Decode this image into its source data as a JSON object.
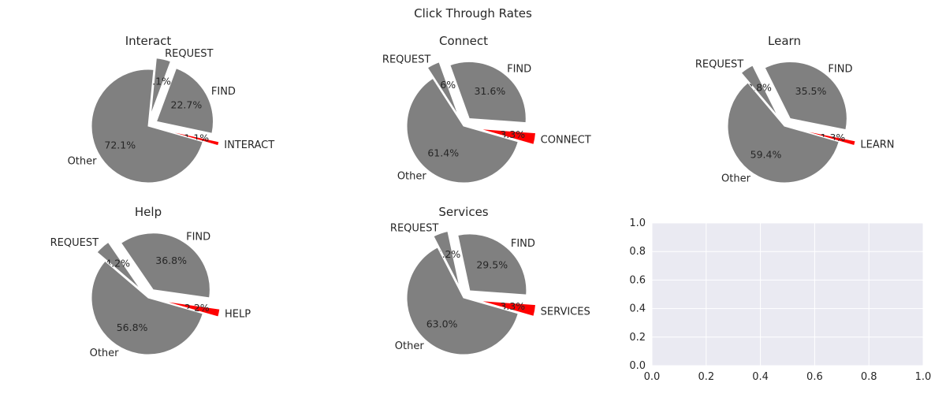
{
  "title": "Click Through Rates",
  "colors": {
    "highlight": "#ff0000",
    "base": "#808080",
    "axes_bg": "#eaeaf2",
    "grid": "#ffffff"
  },
  "chart_data": [
    {
      "type": "pie",
      "title": "Interact",
      "slices": [
        {
          "label": "INTERACT",
          "value": 1.1,
          "pct_label": "1.1%",
          "highlight": true
        },
        {
          "label": "FIND",
          "value": 22.7,
          "pct_label": "22.7%",
          "highlight": false
        },
        {
          "label": "REQUEST",
          "value": 4.1,
          "pct_label": "4.1%",
          "highlight": false
        },
        {
          "label": "Other",
          "value": 72.1,
          "pct_label": "72.1%",
          "highlight": false
        }
      ]
    },
    {
      "type": "pie",
      "title": "Connect",
      "slices": [
        {
          "label": "CONNECT",
          "value": 3.3,
          "pct_label": "3.3%",
          "highlight": true
        },
        {
          "label": "FIND",
          "value": 31.6,
          "pct_label": "31.6%",
          "highlight": false
        },
        {
          "label": "REQUEST",
          "value": 3.6,
          "pct_label": "3.6%",
          "highlight": false
        },
        {
          "label": "Other",
          "value": 61.4,
          "pct_label": "61.4%",
          "highlight": false
        }
      ]
    },
    {
      "type": "pie",
      "title": "Learn",
      "slices": [
        {
          "label": "LEARN",
          "value": 1.3,
          "pct_label": "1.3%",
          "highlight": true
        },
        {
          "label": "FIND",
          "value": 35.5,
          "pct_label": "35.5%",
          "highlight": false
        },
        {
          "label": "REQUEST",
          "value": 3.8,
          "pct_label": "3.8%",
          "highlight": false
        },
        {
          "label": "Other",
          "value": 59.4,
          "pct_label": "59.4%",
          "highlight": false
        }
      ]
    },
    {
      "type": "pie",
      "title": "Help",
      "slices": [
        {
          "label": "HELP",
          "value": 2.2,
          "pct_label": "2.2%",
          "highlight": true
        },
        {
          "label": "FIND",
          "value": 36.8,
          "pct_label": "36.8%",
          "highlight": false
        },
        {
          "label": "REQUEST",
          "value": 4.2,
          "pct_label": "4.2%",
          "highlight": false
        },
        {
          "label": "Other",
          "value": 56.8,
          "pct_label": "56.8%",
          "highlight": false
        }
      ]
    },
    {
      "type": "pie",
      "title": "Services",
      "slices": [
        {
          "label": "SERVICES",
          "value": 3.3,
          "pct_label": "3.3%",
          "highlight": true
        },
        {
          "label": "FIND",
          "value": 29.5,
          "pct_label": "29.5%",
          "highlight": false
        },
        {
          "label": "REQUEST",
          "value": 4.2,
          "pct_label": "4.2%",
          "highlight": false
        },
        {
          "label": "Other",
          "value": 63.0,
          "pct_label": "63.0%",
          "highlight": false
        }
      ]
    },
    {
      "type": "empty_axes",
      "title": "",
      "xlim": [
        0,
        1
      ],
      "ylim": [
        0,
        1
      ],
      "xticks": [
        "0.0",
        "0.2",
        "0.4",
        "0.6",
        "0.8",
        "1.0"
      ],
      "yticks": [
        "0.0",
        "0.2",
        "0.4",
        "0.6",
        "0.8",
        "1.0"
      ],
      "grid": true
    }
  ]
}
